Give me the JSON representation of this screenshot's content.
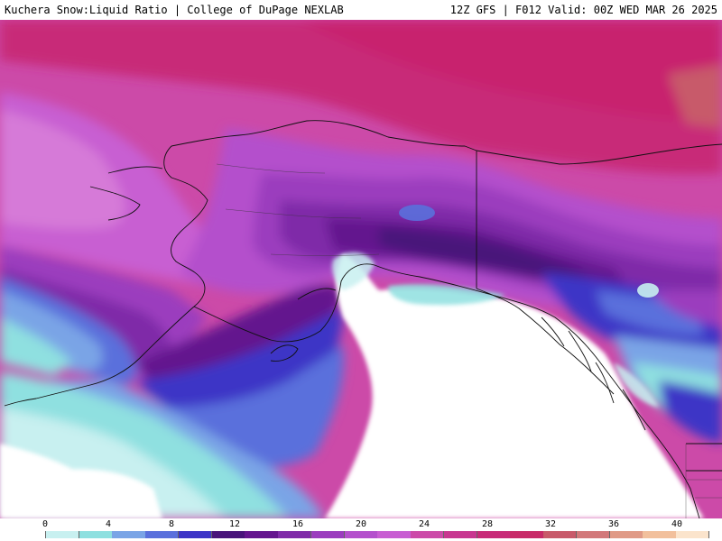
{
  "header": {
    "title_left": "Kuchera Snow:Liquid Ratio | College of DuPage NEXLAB",
    "title_right": "12Z GFS | F012 Valid: 00Z WED MAR 26 2025"
  },
  "colorbar": {
    "ticks": [
      "0",
      "4",
      "8",
      "12",
      "16",
      "20",
      "24",
      "28",
      "32",
      "36",
      "40"
    ],
    "colors": [
      "#ffffff",
      "#c8f0f0",
      "#8fe0e0",
      "#7aa4e6",
      "#5a70dc",
      "#3c34c6",
      "#48137a",
      "#64148e",
      "#7f2aa8",
      "#9b3cbe",
      "#b450cc",
      "#c85ed2",
      "#cc4aa8",
      "#c83690",
      "#c82a78",
      "#c82a68",
      "#c85a6a",
      "#d2787a",
      "#e09a86",
      "#f2c09c",
      "#fbe4cc"
    ]
  },
  "legend_colors": {
    "ratio_0": "#ffffff",
    "ratio_4": "#8fe0e0",
    "ratio_8": "#5a70dc",
    "ratio_12": "#48137a",
    "ratio_16": "#7f2aa8",
    "ratio_20": "#b450cc",
    "ratio_24": "#cc4aa8",
    "ratio_28": "#c82a78",
    "ratio_32": "#c85a6a",
    "ratio_36": "#e09a86",
    "ratio_40": "#fbe4cc"
  }
}
